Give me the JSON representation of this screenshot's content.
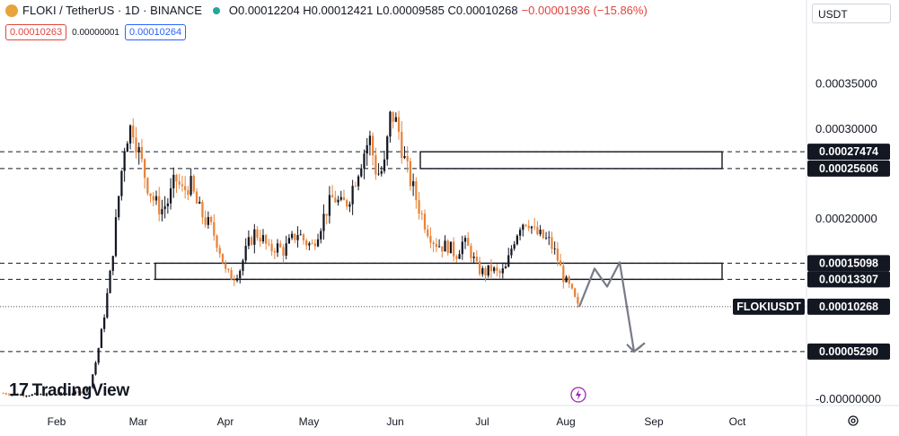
{
  "header": {
    "symbol": "FLOKI / TetherUS · 1D · BINANCE",
    "ohlc": "O0.00012204 H0.00012421 L0.00009585 C0.00010268",
    "change": "−0.00001936 (−15.86%)"
  },
  "trade": {
    "sell_price": "0.00010263",
    "spread": "0.00000001",
    "buy_price": "0.00010264"
  },
  "currency_label": "USDT",
  "brand": "TradingView",
  "brand_mark": "17",
  "colors": {
    "up": "#131722",
    "down": "#e8833a",
    "price_line": "#131722",
    "projection": "#787b86",
    "axis_bg": "#131722"
  },
  "icons": [
    "coin-icon",
    "status-dot-icon",
    "tradingview-logo-icon",
    "lightning-icon",
    "settings-icon"
  ],
  "chart_data": {
    "type": "candlestick",
    "ylim": [
      -1e-05,
      0.00038
    ],
    "xlabels": [
      "Feb",
      "Mar",
      "Apr",
      "May",
      "Jun",
      "Jul",
      "Aug",
      "Sep",
      "Oct"
    ],
    "ytick_labels": [
      "0.00035000",
      "0.00030000",
      "0.00020000",
      "-0.00000000"
    ],
    "ytick_values": [
      0.00035,
      0.0003,
      0.0002,
      0
    ],
    "price_labels": [
      "0.00027474",
      "0.00025606",
      "0.00015098",
      "0.00013307",
      "0.00010268",
      "0.00005290"
    ],
    "symbol_tag": "FLOKIUSDT",
    "levels": [
      0.00027474,
      0.00025606,
      0.00015098,
      0.00013307,
      5.29e-05
    ],
    "last_price": 0.00010268,
    "zones": [
      {
        "top": 0.00027474,
        "bottom": 0.00025606
      },
      {
        "top": 0.00015098,
        "bottom": 0.00013307
      }
    ],
    "trend": [
      [
        6.6e-06,
        5.8e-06,
        5.2e-06,
        5e-06,
        4.8e-06,
        4.9e-06,
        5.2e-06,
        5.5e-06,
        5.8e-06,
        6.2e-06,
        6.8e-06,
        8.2e-06,
        1.3e-05,
        4.5e-05,
        9e-05,
        0.000145,
        0.00022,
        0.00029,
        0.000305,
        0.00027,
        0.00024,
        0.00022,
        0.00021,
        0.00022,
        0.000245,
        0.00023,
        0.00024,
        0.000215,
        0.0002,
        0.00019,
        0.00017,
        0.00014,
        0.000135,
        0.000145,
        0.00017,
        0.000185,
        0.00018,
        0.000165,
        0.00017,
        0.000165,
        0.000175,
        0.000185,
        0.000175,
        0.00017,
        0.00019,
        0.00021,
        0.000225,
        0.000215,
        0.00022,
        0.000245,
        0.00027,
        0.00029,
        0.00025,
        0.000255,
        0.00032,
        0.0003,
        0.00026,
        0.000235,
        0.00021,
        0.00019,
        0.000175,
        0.00017,
        0.00017,
        0.00016,
        0.000175,
        0.000165,
        0.000145,
        0.00014,
        0.000145,
        0.000138,
        0.000145,
        0.000175,
        0.000195,
        0.0002,
        0.000185,
        0.00018,
        0.000175,
        0.00016,
        0.000135,
        0.00012204,
        0.00010268
      ]
    ],
    "projection": [
      0.00010268,
      0.000145,
      0.000125,
      0.000152,
      5.29e-05,
      6.25e-05
    ]
  }
}
